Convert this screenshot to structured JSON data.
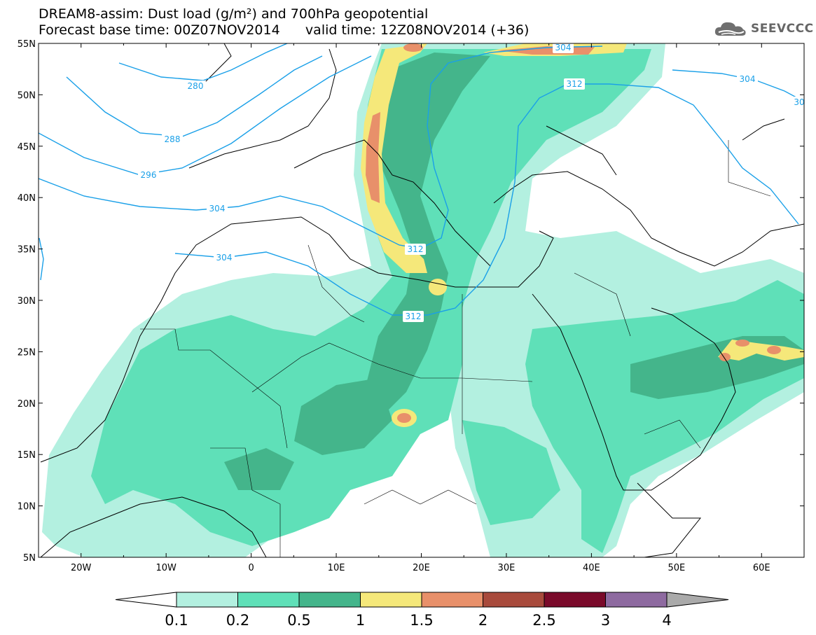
{
  "header": {
    "title_line1": "DREAM8-assim: Dust load (g/m²) and 700hPa geopotential",
    "title_line2": "Forecast base time: 00Z07NOV2014      valid time: 12Z08NOV2014 (+36)",
    "logo_text": "SEEVCCC",
    "logo_icon": "cloud-icon"
  },
  "map": {
    "lat_range": [
      5,
      55
    ],
    "lon_range": [
      -25,
      65
    ],
    "lat_labels": [
      "55N",
      "50N",
      "45N",
      "40N",
      "35N",
      "30N",
      "25N",
      "20N",
      "15N",
      "10N",
      "5N"
    ],
    "lon_labels": [
      "20W",
      "10W",
      "0",
      "10E",
      "20E",
      "30E",
      "40E",
      "50E",
      "60E"
    ],
    "contour_labels": [
      "280",
      "288",
      "296",
      "304",
      "312",
      "304",
      "312",
      "304",
      "312",
      "304",
      "30"
    ],
    "contour_color": "#1aa0e8"
  },
  "colorbar": {
    "labels": [
      "0.1",
      "0.2",
      "0.5",
      "1",
      "1.5",
      "2",
      "2.5",
      "3",
      "4"
    ],
    "colors": [
      "#b3f0e0",
      "#5fe0b8",
      "#44b58b",
      "#f5e87a",
      "#e8906a",
      "#a84a3c",
      "#7a0a2a",
      "#8e6aa0",
      "#aaaaaa"
    ]
  }
}
